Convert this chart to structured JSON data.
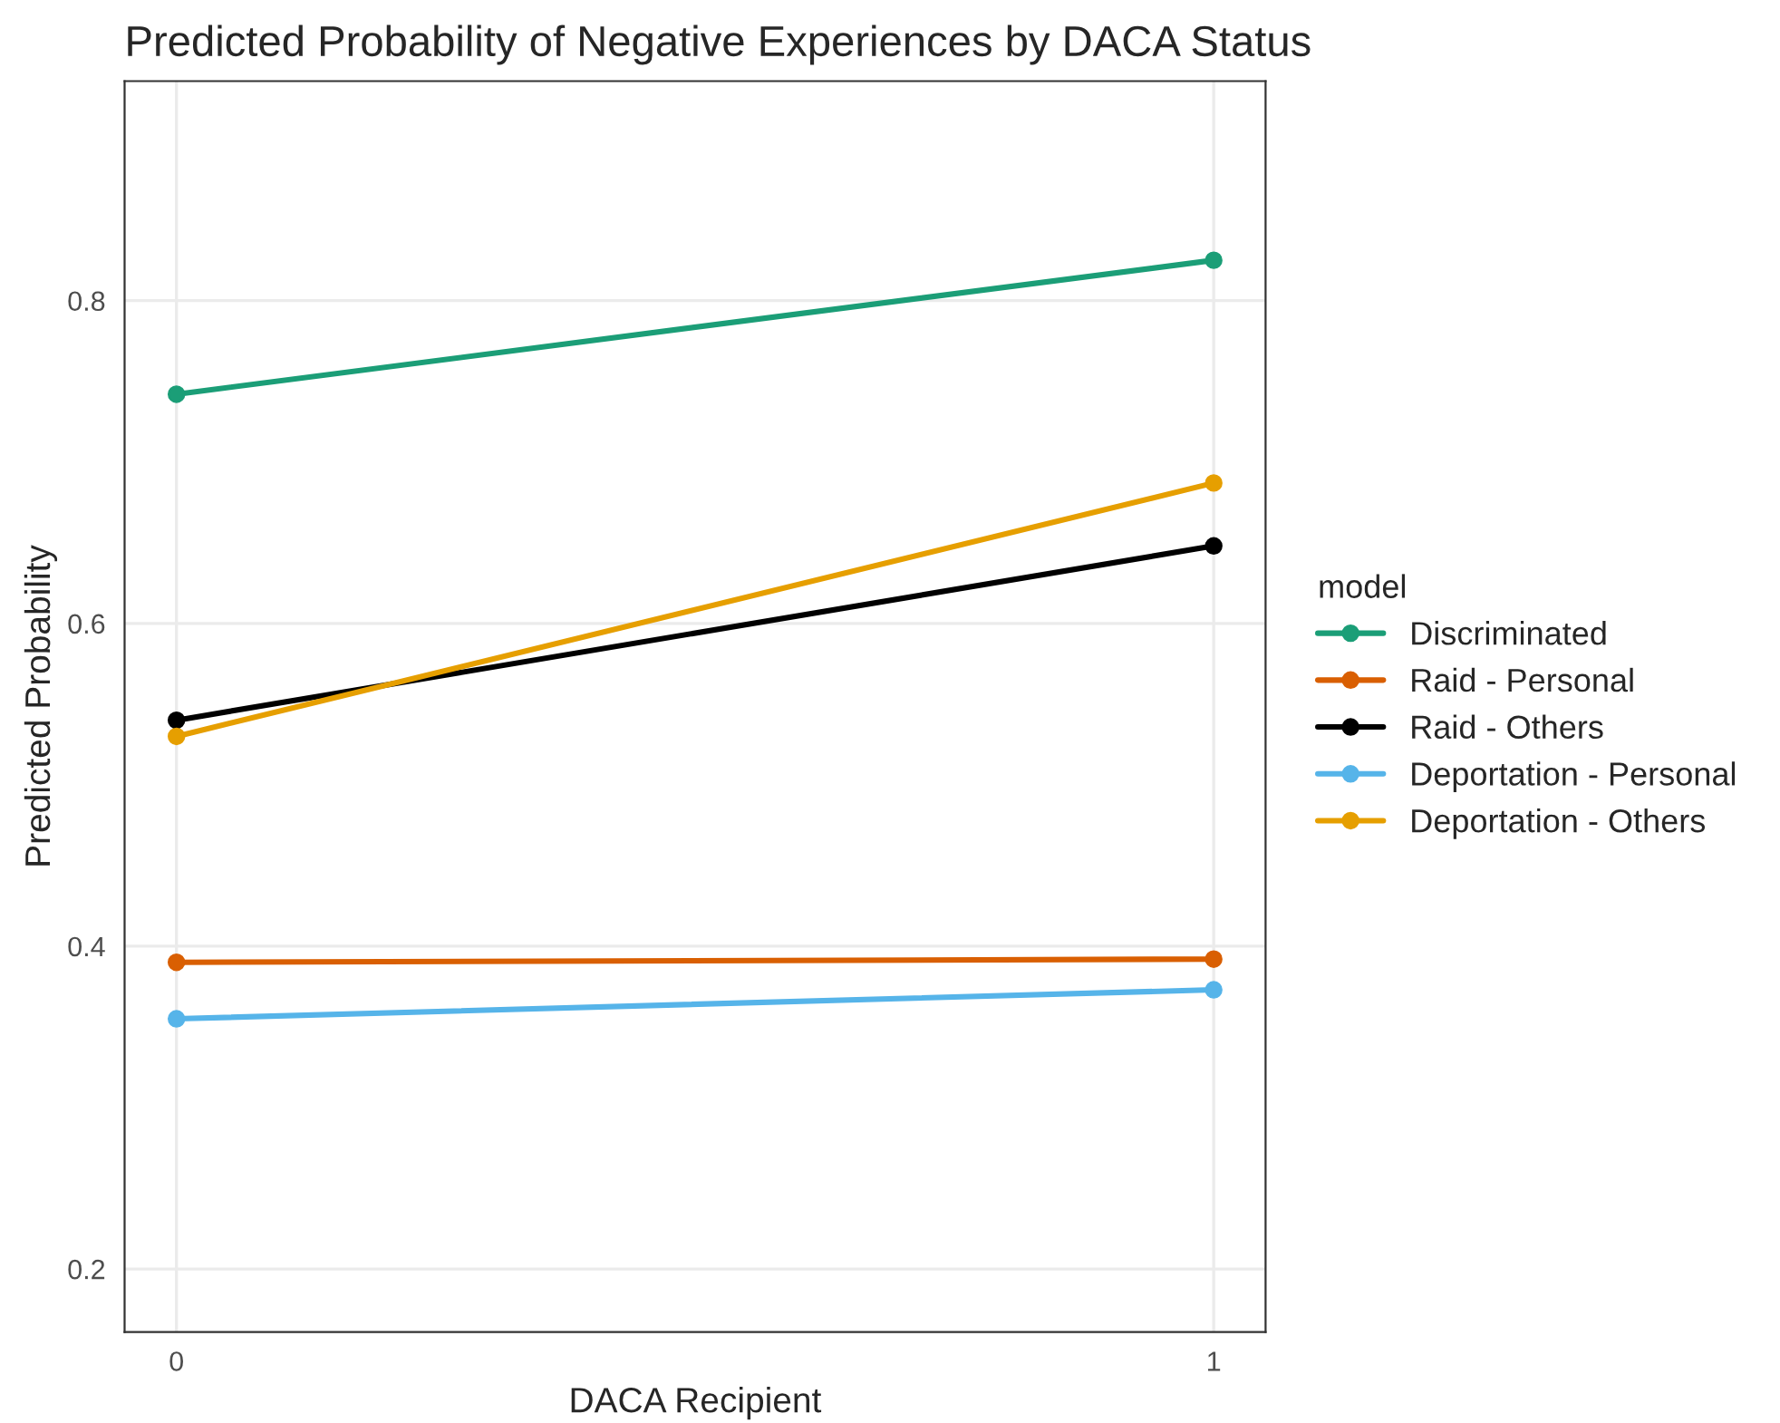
{
  "chart_data": {
    "type": "line",
    "title": "Predicted Probability of Negative Experiences by DACA Status",
    "xlabel": "DACA Recipient",
    "ylabel": "Predicted Probability",
    "legend_title": "model",
    "x": [
      0,
      1
    ],
    "xlim": [
      -0.05,
      1.05
    ],
    "xticks": [
      0,
      1
    ],
    "ylim": [
      0.161,
      0.936
    ],
    "yticks": [
      0.2,
      0.4,
      0.6,
      0.8
    ],
    "grid": true,
    "legend": "right",
    "marker": "circle",
    "line_style": "solid",
    "series": [
      {
        "name": "Discriminated",
        "color": "#1b9e77",
        "values": [
          0.742,
          0.825
        ]
      },
      {
        "name": "Raid - Personal",
        "color": "#d95f02",
        "values": [
          0.39,
          0.392
        ]
      },
      {
        "name": "Raid - Others",
        "color": "#000000",
        "values": [
          0.54,
          0.648
        ]
      },
      {
        "name": "Deportation - Personal",
        "color": "#56b4e9",
        "values": [
          0.355,
          0.373
        ]
      },
      {
        "name": "Deportation - Others",
        "color": "#e69f00",
        "values": [
          0.53,
          0.687
        ]
      }
    ]
  }
}
